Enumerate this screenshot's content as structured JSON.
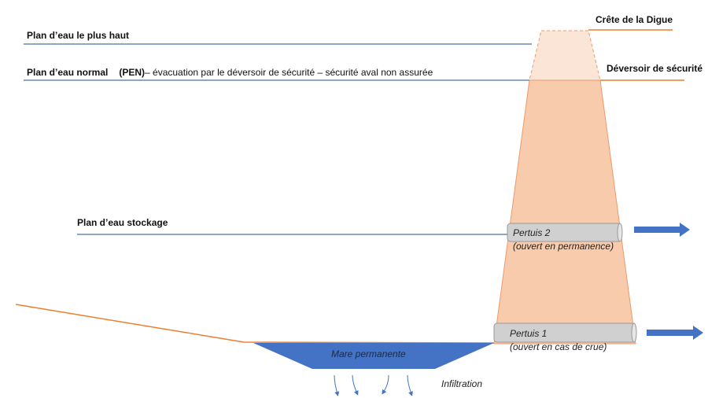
{
  "levels": {
    "highest": "Plan d’eau le plus haut",
    "normal": "Plan d’eau normal",
    "normal_abbr": "(PEN)",
    "normal_desc": "– évacuation par le déversoir de sécurité – sécurité aval non assurée",
    "storage": "Plan d’eau stockage"
  },
  "dam": {
    "crest": "Crête de la Digue",
    "spillway": "Déversoir de sécurité"
  },
  "outlets": [
    {
      "name": "Pertuis 2",
      "note": "(ouvert en permanence)"
    },
    {
      "name": "Pertuis 1",
      "note": "(ouvert en cas de crue)"
    }
  ],
  "pond": "Mare permanente",
  "infiltration": "Infiltration",
  "colors": {
    "water": "#4472c4",
    "dam": "#f8cbad",
    "dam_upper": "#fbe5d6",
    "ground": "#ed7d31",
    "level_line": "#4a6fa5",
    "pipe": "#d0d0d0"
  }
}
